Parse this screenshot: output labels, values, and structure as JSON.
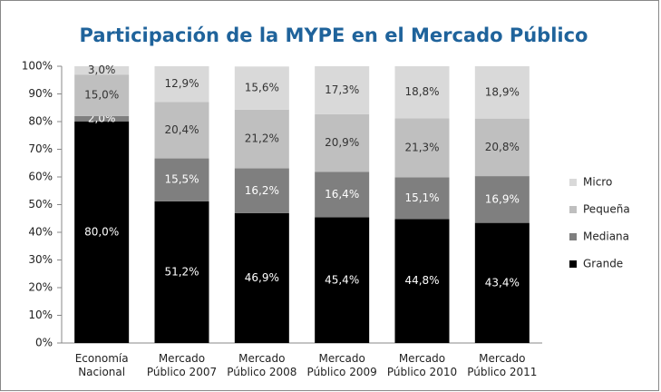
{
  "chart_data": {
    "type": "stacked_bar",
    "title": "Participación de la MYPE en el Mercado Público",
    "categories": [
      "Economía Nacional",
      "Mercado Público 2007",
      "Mercado Público 2008",
      "Mercado Público 2009",
      "Mercado Público 2010",
      "Mercado Público 2011"
    ],
    "series": [
      {
        "name": "Grande",
        "color": "#000000",
        "values": [
          80.0,
          51.2,
          46.9,
          45.4,
          44.8,
          43.4
        ],
        "value_labels": [
          "80,0%",
          "51,2%",
          "46,9%",
          "45,4%",
          "44,8%",
          "43,4%"
        ]
      },
      {
        "name": "Mediana",
        "color": "#7f7f7f",
        "values": [
          2.0,
          15.5,
          16.2,
          16.4,
          15.1,
          16.9
        ],
        "value_labels": [
          "2,0%",
          "15,5%",
          "16,2%",
          "16,4%",
          "15,1%",
          "16,9%"
        ]
      },
      {
        "name": "Pequeña",
        "color": "#bfbfbf",
        "values": [
          15.0,
          20.4,
          21.2,
          20.9,
          21.3,
          20.8
        ],
        "value_labels": [
          "15,0%",
          "20,4%",
          "21,2%",
          "20,9%",
          "21,3%",
          "20,8%"
        ]
      },
      {
        "name": "Micro",
        "color": "#d9d9d9",
        "values": [
          3.0,
          12.9,
          15.6,
          17.3,
          18.8,
          18.9
        ],
        "value_labels": [
          "3,0%",
          "12,9%",
          "15,6%",
          "17,3%",
          "18,8%",
          "18,9%"
        ]
      }
    ],
    "ylim": [
      0,
      100
    ],
    "yticks": [
      {
        "value": 0,
        "label": "0%"
      },
      {
        "value": 10,
        "label": "10%"
      },
      {
        "value": 20,
        "label": "20%"
      },
      {
        "value": 30,
        "label": "30%"
      },
      {
        "value": 40,
        "label": "40%"
      },
      {
        "value": 50,
        "label": "50%"
      },
      {
        "value": 60,
        "label": "60%"
      },
      {
        "value": 70,
        "label": "70%"
      },
      {
        "value": 80,
        "label": "80%"
      },
      {
        "value": 90,
        "label": "90%"
      },
      {
        "value": 100,
        "label": "100%"
      }
    ],
    "legend": "right"
  }
}
